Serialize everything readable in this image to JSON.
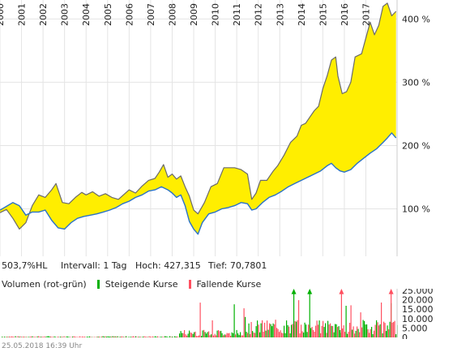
{
  "chart_data": [
    {
      "type": "area",
      "x_ticks": [
        "2000",
        "2001",
        "2002",
        "2003",
        "2004",
        "2005",
        "2006",
        "2007",
        "2008",
        "2009",
        "2010",
        "2011",
        "2012",
        "2013",
        "2014",
        "2015",
        "2016",
        "2017"
      ],
      "y_ticks": [
        "100 %",
        "200 %",
        "300 %",
        "400 %"
      ],
      "ylim": [
        25,
        430
      ],
      "grid": true,
      "series": [
        {
          "color": "#6a6a6a",
          "fill": "#ffee00",
          "points": [
            [
              2000.0,
              94
            ],
            [
              2000.3,
              99
            ],
            [
              2000.6,
              85
            ],
            [
              2000.9,
              68
            ],
            [
              2001.2,
              78
            ],
            [
              2001.5,
              105
            ],
            [
              2001.8,
              122
            ],
            [
              2002.1,
              118
            ],
            [
              2002.4,
              130
            ],
            [
              2002.6,
              140
            ],
            [
              2002.9,
              110
            ],
            [
              2003.2,
              108
            ],
            [
              2003.5,
              118
            ],
            [
              2003.8,
              126
            ],
            [
              2004.0,
              122
            ],
            [
              2004.3,
              127
            ],
            [
              2004.6,
              120
            ],
            [
              2004.9,
              124
            ],
            [
              2005.2,
              118
            ],
            [
              2005.5,
              115
            ],
            [
              2005.8,
              124
            ],
            [
              2006.0,
              130
            ],
            [
              2006.3,
              125
            ],
            [
              2006.6,
              136
            ],
            [
              2006.9,
              145
            ],
            [
              2007.2,
              148
            ],
            [
              2007.4,
              158
            ],
            [
              2007.6,
              170
            ],
            [
              2007.8,
              150
            ],
            [
              2008.0,
              155
            ],
            [
              2008.2,
              147
            ],
            [
              2008.4,
              152
            ],
            [
              2008.6,
              135
            ],
            [
              2008.8,
              120
            ],
            [
              2009.0,
              98
            ],
            [
              2009.2,
              92
            ],
            [
              2009.5,
              110
            ],
            [
              2009.8,
              135
            ],
            [
              2010.1,
              140
            ],
            [
              2010.4,
              165
            ],
            [
              2010.7,
              165
            ],
            [
              2010.9,
              165
            ],
            [
              2011.2,
              162
            ],
            [
              2011.5,
              155
            ],
            [
              2011.7,
              115
            ],
            [
              2011.9,
              125
            ],
            [
              2012.1,
              145
            ],
            [
              2012.4,
              145
            ],
            [
              2012.7,
              160
            ],
            [
              2012.9,
              168
            ],
            [
              2013.2,
              185
            ],
            [
              2013.5,
              205
            ],
            [
              2013.8,
              215
            ],
            [
              2014.0,
              232
            ],
            [
              2014.2,
              235
            ],
            [
              2014.4,
              245
            ],
            [
              2014.6,
              255
            ],
            [
              2014.8,
              262
            ],
            [
              2015.0,
              290
            ],
            [
              2015.2,
              310
            ],
            [
              2015.4,
              335
            ],
            [
              2015.6,
              340
            ],
            [
              2015.7,
              310
            ],
            [
              2015.9,
              282
            ],
            [
              2016.1,
              285
            ],
            [
              2016.3,
              300
            ],
            [
              2016.5,
              340
            ],
            [
              2016.8,
              345
            ],
            [
              2017.0,
              370
            ],
            [
              2017.2,
              395
            ],
            [
              2017.4,
              375
            ],
            [
              2017.6,
              390
            ],
            [
              2017.8,
              420
            ],
            [
              2018.0,
              425
            ],
            [
              2018.2,
              405
            ],
            [
              2018.4,
              412
            ]
          ]
        },
        {
          "color": "#2a72c8",
          "points": [
            [
              2000.0,
              98
            ],
            [
              2000.3,
              104
            ],
            [
              2000.6,
              110
            ],
            [
              2000.9,
              105
            ],
            [
              2001.2,
              90
            ],
            [
              2001.5,
              95
            ],
            [
              2001.8,
              95
            ],
            [
              2002.1,
              98
            ],
            [
              2002.4,
              82
            ],
            [
              2002.7,
              70
            ],
            [
              2003.0,
              68
            ],
            [
              2003.3,
              78
            ],
            [
              2003.6,
              85
            ],
            [
              2003.9,
              88
            ],
            [
              2004.2,
              90
            ],
            [
              2004.5,
              92
            ],
            [
              2004.8,
              95
            ],
            [
              2005.1,
              98
            ],
            [
              2005.4,
              102
            ],
            [
              2005.7,
              108
            ],
            [
              2006.0,
              112
            ],
            [
              2006.3,
              118
            ],
            [
              2006.6,
              122
            ],
            [
              2006.9,
              128
            ],
            [
              2007.2,
              130
            ],
            [
              2007.5,
              135
            ],
            [
              2007.8,
              130
            ],
            [
              2008.0,
              125
            ],
            [
              2008.2,
              118
            ],
            [
              2008.4,
              122
            ],
            [
              2008.6,
              105
            ],
            [
              2008.8,
              80
            ],
            [
              2009.0,
              68
            ],
            [
              2009.2,
              60
            ],
            [
              2009.4,
              78
            ],
            [
              2009.7,
              92
            ],
            [
              2010.0,
              95
            ],
            [
              2010.3,
              100
            ],
            [
              2010.6,
              102
            ],
            [
              2010.9,
              105
            ],
            [
              2011.2,
              110
            ],
            [
              2011.5,
              108
            ],
            [
              2011.7,
              98
            ],
            [
              2011.9,
              100
            ],
            [
              2012.2,
              110
            ],
            [
              2012.5,
              118
            ],
            [
              2012.8,
              122
            ],
            [
              2013.1,
              128
            ],
            [
              2013.4,
              135
            ],
            [
              2013.7,
              140
            ],
            [
              2014.0,
              145
            ],
            [
              2014.3,
              150
            ],
            [
              2014.6,
              155
            ],
            [
              2014.9,
              160
            ],
            [
              2015.2,
              168
            ],
            [
              2015.4,
              172
            ],
            [
              2015.6,
              165
            ],
            [
              2015.8,
              160
            ],
            [
              2016.0,
              158
            ],
            [
              2016.3,
              162
            ],
            [
              2016.6,
              172
            ],
            [
              2016.9,
              180
            ],
            [
              2017.2,
              188
            ],
            [
              2017.5,
              195
            ],
            [
              2017.8,
              205
            ],
            [
              2018.0,
              212
            ],
            [
              2018.2,
              220
            ],
            [
              2018.4,
              212
            ]
          ]
        }
      ]
    },
    {
      "type": "bar",
      "yticks": [
        "0",
        "5.000",
        "10.000",
        "15.000",
        "20.000",
        "25.000"
      ],
      "ylim": [
        0,
        25000
      ],
      "series": [
        {
          "name": "Steigende Kurse",
          "color": "#00b000"
        },
        {
          "name": "Fallende Kurse",
          "color": "#ff5060"
        }
      ]
    }
  ],
  "info": {
    "change": "503,7%HL",
    "interval": "Intervall: 1 Tag",
    "high": "Hoch: 427,315",
    "low": "Tief: 70,7801"
  },
  "volume_legend": {
    "title": "Volumen (rot-grün)",
    "up": "Steigende Kurse",
    "down": "Fallende Kurse"
  },
  "timestamp": "25.05.2018 16:39 Uhr"
}
